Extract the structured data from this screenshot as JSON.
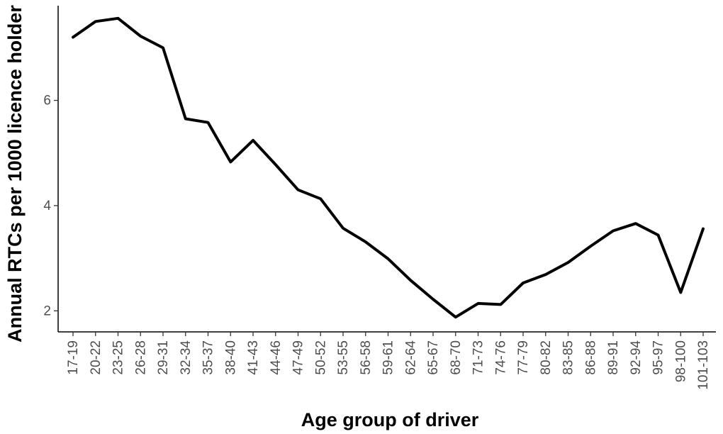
{
  "chart_data": {
    "type": "line",
    "title": "",
    "xlabel": "Age group of driver",
    "ylabel": "Annual RTCs per 1000 licence holder",
    "categories": [
      "17-19",
      "20-22",
      "23-25",
      "26-28",
      "29-31",
      "32-34",
      "35-37",
      "38-40",
      "41-43",
      "44-46",
      "47-49",
      "50-52",
      "53-55",
      "56-58",
      "59-61",
      "62-64",
      "65-67",
      "68-70",
      "71-73",
      "74-76",
      "77-79",
      "80-82",
      "83-85",
      "86-88",
      "89-91",
      "92-94",
      "95-97",
      "98-100",
      "101-103"
    ],
    "series": [
      {
        "values": [
          7.2,
          7.5,
          7.56,
          7.22,
          7.0,
          5.65,
          5.58,
          4.83,
          5.24,
          4.78,
          4.3,
          4.13,
          3.57,
          3.31,
          2.99,
          2.58,
          2.22,
          1.88,
          2.14,
          2.12,
          2.53,
          2.69,
          2.92,
          3.23,
          3.52,
          3.66,
          3.44,
          2.35,
          3.56
        ],
        "color": "#000000"
      }
    ],
    "y_ticks": [
      2,
      4,
      6
    ],
    "ylim": [
      1.6,
      7.8
    ],
    "grid": false,
    "legend": "none"
  }
}
